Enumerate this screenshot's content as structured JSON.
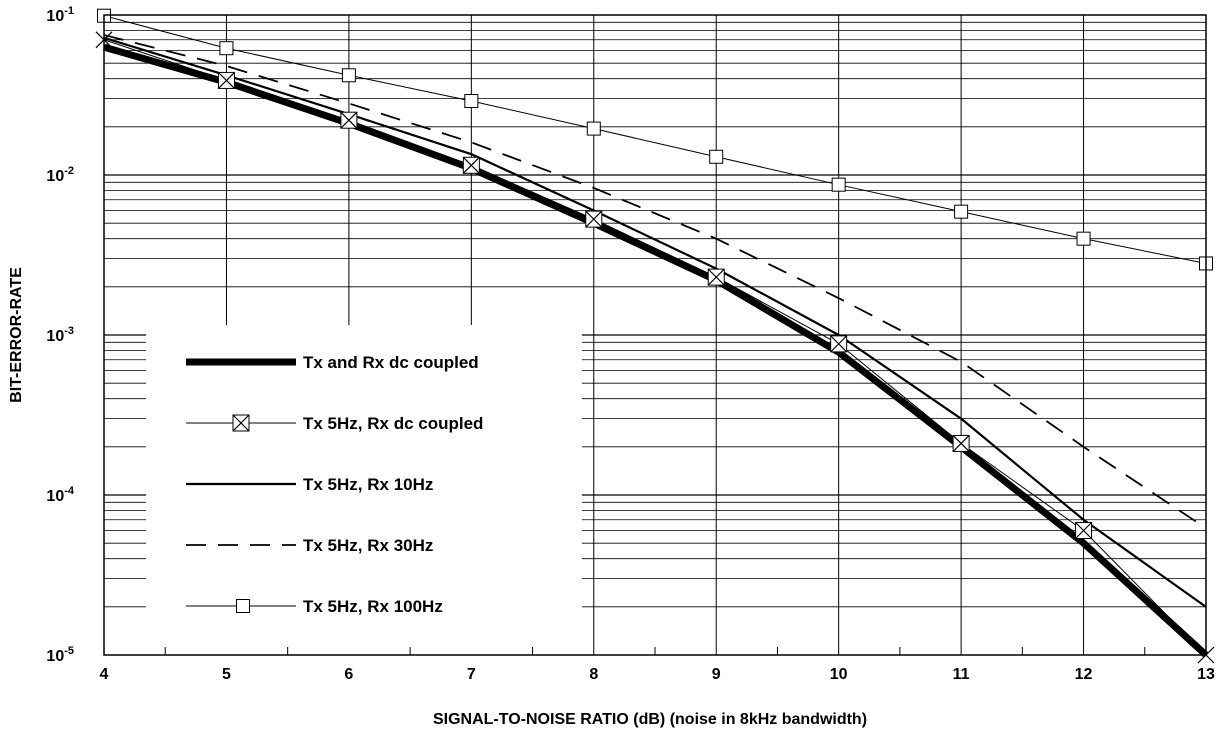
{
  "chart_data": {
    "type": "line",
    "xlabel": "SIGNAL-TO-NOISE RATIO (dB) (noise in 8kHz bandwidth)",
    "ylabel": "BIT-ERROR-RATE",
    "xlim": [
      4,
      13
    ],
    "ylim": [
      1e-05,
      0.1
    ],
    "yscale": "log",
    "grid": true,
    "legend_position": "lower-left",
    "x_ticks": [
      "4",
      "5",
      "6",
      "7",
      "8",
      "9",
      "10",
      "11",
      "12",
      "13"
    ],
    "y_ticks": [
      {
        "base": "10",
        "exp": "-1"
      },
      {
        "base": "10",
        "exp": "-2"
      },
      {
        "base": "10",
        "exp": "-3"
      },
      {
        "base": "10",
        "exp": "-4"
      },
      {
        "base": "10",
        "exp": "-5"
      }
    ],
    "series": [
      {
        "name": "Tx and Rx dc coupled",
        "style": "thick",
        "color": "#000000",
        "x": [
          4,
          5,
          6,
          7,
          8,
          9,
          10,
          11,
          12,
          13
        ],
        "y": [
          0.063,
          0.038,
          0.021,
          0.011,
          0.005,
          0.0022,
          0.00078,
          0.0002,
          5e-05,
          1e-05
        ]
      },
      {
        "name": "Tx 5Hz, Rx dc coupled",
        "style": "thin-boxed-x",
        "color": "#000000",
        "x": [
          4,
          5,
          6,
          7,
          8,
          9,
          10,
          11,
          12,
          13
        ],
        "y": [
          0.07,
          0.039,
          0.022,
          0.0115,
          0.0053,
          0.0023,
          0.00088,
          0.00021,
          6e-05,
          1e-05
        ]
      },
      {
        "name": "Tx 5Hz, Rx 10Hz",
        "style": "medium",
        "color": "#000000",
        "x": [
          4,
          5,
          6,
          7,
          8,
          9,
          10,
          11,
          12,
          13
        ],
        "y": [
          0.072,
          0.042,
          0.024,
          0.0135,
          0.006,
          0.0026,
          0.001,
          0.0003,
          7e-05,
          2e-05
        ]
      },
      {
        "name": "Tx 5Hz, Rx 30Hz",
        "style": "dashed",
        "color": "#000000",
        "x": [
          4,
          5,
          6,
          7,
          8,
          9,
          10,
          11,
          12,
          13
        ],
        "y": [
          0.075,
          0.048,
          0.028,
          0.016,
          0.0083,
          0.004,
          0.0017,
          0.00068,
          0.0002,
          6.2e-05
        ]
      },
      {
        "name": "Tx 5Hz, Rx 100Hz",
        "style": "thin-squares",
        "color": "#000000",
        "x": [
          4,
          5,
          6,
          7,
          8,
          9,
          10,
          11,
          12,
          13
        ],
        "y": [
          0.099,
          0.062,
          0.042,
          0.029,
          0.0195,
          0.013,
          0.0087,
          0.0059,
          0.004,
          0.0028
        ]
      }
    ]
  }
}
